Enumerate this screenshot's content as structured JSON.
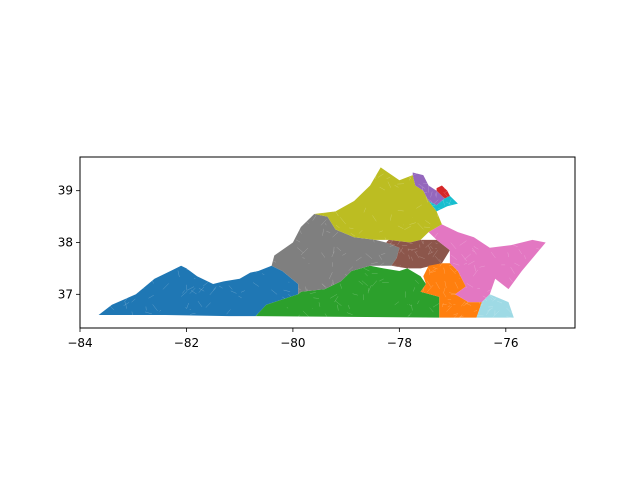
{
  "chart_data": {
    "type": "map",
    "title": "",
    "xlabel": "",
    "ylabel": "",
    "xlim": [
      -84.0,
      -74.7
    ],
    "ylim": [
      36.35,
      39.65
    ],
    "xticks": [
      {
        "value": -84,
        "label": "−84"
      },
      {
        "value": -82,
        "label": "−82"
      },
      {
        "value": -80,
        "label": "−80"
      },
      {
        "value": -78,
        "label": "−78"
      },
      {
        "value": -76,
        "label": "−76"
      }
    ],
    "yticks": [
      {
        "value": 37,
        "label": "37"
      },
      {
        "value": 38,
        "label": "38"
      },
      {
        "value": 39,
        "label": "39"
      }
    ],
    "regions": [
      {
        "id": "district-1",
        "color": "#1f77b4",
        "outline": [
          [
            -83.65,
            36.6
          ],
          [
            -82.4,
            36.6
          ],
          [
            -81.2,
            36.58
          ],
          [
            -80.7,
            36.58
          ],
          [
            -80.5,
            36.8
          ],
          [
            -79.9,
            37.0
          ],
          [
            -79.9,
            37.2
          ],
          [
            -80.2,
            37.45
          ],
          [
            -80.4,
            37.55
          ],
          [
            -80.65,
            37.45
          ],
          [
            -80.8,
            37.42
          ],
          [
            -81.0,
            37.3
          ],
          [
            -81.3,
            37.25
          ],
          [
            -81.5,
            37.2
          ],
          [
            -81.8,
            37.35
          ],
          [
            -82.0,
            37.5
          ],
          [
            -82.1,
            37.55
          ],
          [
            -82.3,
            37.45
          ],
          [
            -82.6,
            37.3
          ],
          [
            -82.95,
            37.0
          ],
          [
            -83.4,
            36.8
          ]
        ]
      },
      {
        "id": "district-2",
        "color": "#2ca02c",
        "outline": [
          [
            -80.7,
            36.58
          ],
          [
            -77.25,
            36.55
          ],
          [
            -77.25,
            36.95
          ],
          [
            -77.6,
            37.05
          ],
          [
            -77.5,
            37.2
          ],
          [
            -77.6,
            37.35
          ],
          [
            -77.85,
            37.5
          ],
          [
            -78.0,
            37.45
          ],
          [
            -78.3,
            37.5
          ],
          [
            -78.55,
            37.55
          ],
          [
            -78.9,
            37.45
          ],
          [
            -79.1,
            37.25
          ],
          [
            -79.4,
            37.1
          ],
          [
            -79.85,
            37.05
          ],
          [
            -79.9,
            37.0
          ],
          [
            -80.5,
            36.8
          ]
        ]
      },
      {
        "id": "district-3",
        "color": "#7f7f7f",
        "outline": [
          [
            -79.9,
            37.0
          ],
          [
            -79.9,
            37.2
          ],
          [
            -80.2,
            37.45
          ],
          [
            -80.4,
            37.55
          ],
          [
            -80.35,
            37.75
          ],
          [
            -80.0,
            38.0
          ],
          [
            -79.85,
            38.3
          ],
          [
            -79.6,
            38.55
          ],
          [
            -79.35,
            38.5
          ],
          [
            -79.2,
            38.25
          ],
          [
            -78.85,
            38.1
          ],
          [
            -78.45,
            38.05
          ],
          [
            -78.25,
            38.0
          ],
          [
            -78.0,
            37.9
          ],
          [
            -78.05,
            37.7
          ],
          [
            -78.15,
            37.55
          ],
          [
            -78.55,
            37.55
          ],
          [
            -78.9,
            37.45
          ],
          [
            -79.1,
            37.25
          ],
          [
            -79.4,
            37.1
          ],
          [
            -79.85,
            37.05
          ]
        ]
      },
      {
        "id": "district-4",
        "color": "#bcbd22",
        "outline": [
          [
            -79.6,
            38.55
          ],
          [
            -79.35,
            38.5
          ],
          [
            -79.2,
            38.25
          ],
          [
            -78.85,
            38.1
          ],
          [
            -78.45,
            38.05
          ],
          [
            -78.2,
            38.05
          ],
          [
            -77.8,
            38.0
          ],
          [
            -77.6,
            38.05
          ],
          [
            -77.45,
            38.2
          ],
          [
            -77.2,
            38.35
          ],
          [
            -77.3,
            38.6
          ],
          [
            -77.45,
            38.8
          ],
          [
            -77.55,
            39.0
          ],
          [
            -77.7,
            39.1
          ],
          [
            -77.75,
            39.3
          ],
          [
            -78.0,
            39.2
          ],
          [
            -78.35,
            39.45
          ],
          [
            -78.55,
            39.1
          ],
          [
            -78.85,
            38.8
          ],
          [
            -79.2,
            38.6
          ]
        ]
      },
      {
        "id": "district-5",
        "color": "#8c564b",
        "outline": [
          [
            -78.25,
            38.0
          ],
          [
            -78.0,
            37.9
          ],
          [
            -78.05,
            37.7
          ],
          [
            -78.15,
            37.55
          ],
          [
            -77.85,
            37.5
          ],
          [
            -77.6,
            37.5
          ],
          [
            -77.2,
            37.6
          ],
          [
            -77.05,
            37.85
          ],
          [
            -77.3,
            38.05
          ],
          [
            -77.6,
            38.05
          ],
          [
            -77.8,
            38.0
          ],
          [
            -78.2,
            38.05
          ]
        ]
      },
      {
        "id": "district-6",
        "color": "#ff7f0e",
        "outline": [
          [
            -77.25,
            36.55
          ],
          [
            -76.55,
            36.55
          ],
          [
            -76.45,
            36.85
          ],
          [
            -76.7,
            36.85
          ],
          [
            -76.95,
            37.0
          ],
          [
            -76.75,
            37.15
          ],
          [
            -76.9,
            37.45
          ],
          [
            -77.05,
            37.6
          ],
          [
            -77.2,
            37.6
          ],
          [
            -77.45,
            37.55
          ],
          [
            -77.55,
            37.35
          ],
          [
            -77.5,
            37.2
          ],
          [
            -77.6,
            37.05
          ],
          [
            -77.25,
            36.95
          ]
        ]
      },
      {
        "id": "district-7",
        "color": "#e377c2",
        "outline": [
          [
            -77.05,
            37.85
          ],
          [
            -77.05,
            37.6
          ],
          [
            -76.9,
            37.45
          ],
          [
            -76.75,
            37.15
          ],
          [
            -76.95,
            37.0
          ],
          [
            -76.7,
            36.85
          ],
          [
            -76.45,
            36.85
          ],
          [
            -76.3,
            37.0
          ],
          [
            -76.2,
            37.3
          ],
          [
            -75.95,
            37.1
          ],
          [
            -75.7,
            37.45
          ],
          [
            -75.25,
            38.0
          ],
          [
            -75.5,
            38.05
          ],
          [
            -75.9,
            37.95
          ],
          [
            -76.3,
            37.9
          ],
          [
            -76.6,
            38.1
          ],
          [
            -76.9,
            38.2
          ],
          [
            -77.2,
            38.35
          ],
          [
            -77.45,
            38.2
          ],
          [
            -77.3,
            38.05
          ]
        ]
      },
      {
        "id": "district-8",
        "color": "#9edae5",
        "outline": [
          [
            -76.55,
            36.55
          ],
          [
            -75.85,
            36.55
          ],
          [
            -75.95,
            36.85
          ],
          [
            -76.3,
            37.0
          ],
          [
            -76.45,
            36.85
          ]
        ]
      },
      {
        "id": "district-9",
        "color": "#9467bd",
        "outline": [
          [
            -77.75,
            39.3
          ],
          [
            -77.7,
            39.1
          ],
          [
            -77.55,
            39.0
          ],
          [
            -77.45,
            38.8
          ],
          [
            -77.3,
            38.72
          ],
          [
            -77.15,
            38.85
          ],
          [
            -77.3,
            39.0
          ],
          [
            -77.45,
            39.1
          ],
          [
            -77.55,
            39.3
          ],
          [
            -77.75,
            39.35
          ]
        ]
      },
      {
        "id": "district-10",
        "color": "#17becf",
        "outline": [
          [
            -77.45,
            38.8
          ],
          [
            -77.3,
            38.6
          ],
          [
            -77.1,
            38.7
          ],
          [
            -76.9,
            38.75
          ],
          [
            -77.05,
            38.9
          ],
          [
            -77.15,
            38.85
          ],
          [
            -77.3,
            38.72
          ]
        ]
      },
      {
        "id": "district-11",
        "color": "#d62728",
        "outline": [
          [
            -77.3,
            39.0
          ],
          [
            -77.15,
            38.85
          ],
          [
            -77.05,
            38.9
          ],
          [
            -77.1,
            39.0
          ],
          [
            -77.2,
            39.1
          ],
          [
            -77.3,
            39.05
          ]
        ]
      }
    ]
  }
}
